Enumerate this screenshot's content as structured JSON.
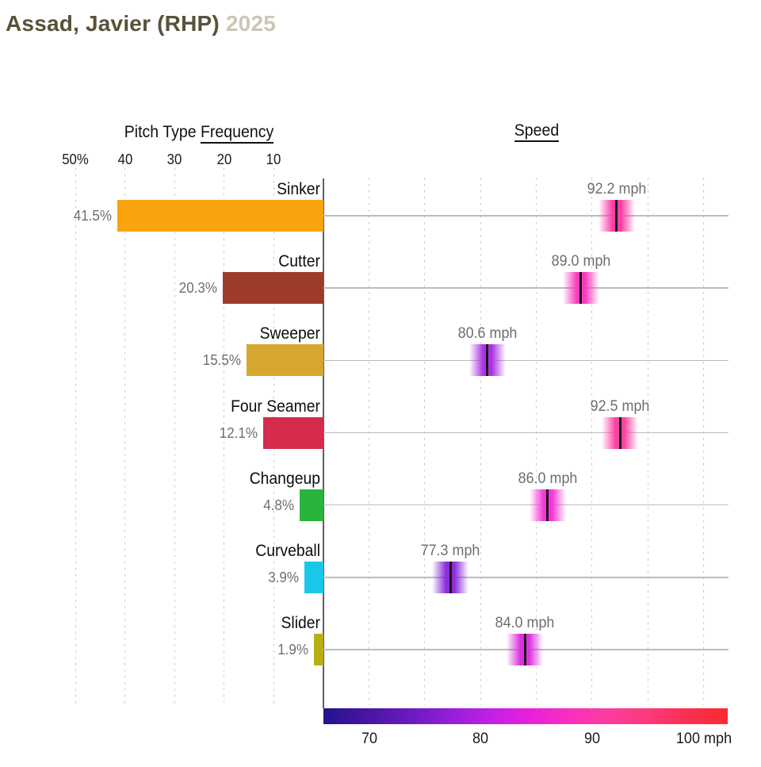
{
  "title": {
    "player": "Assad, Javier (RHP)",
    "year": "2025"
  },
  "sections": {
    "frequency": {
      "title_prefix": "Pitch Type ",
      "title_underlined": "Frequency",
      "axis_ticks": [
        {
          "label": "50%",
          "value": 50
        },
        {
          "label": "40",
          "value": 40
        },
        {
          "label": "30",
          "value": 30
        },
        {
          "label": "20",
          "value": 20
        },
        {
          "label": "10",
          "value": 10
        }
      ]
    },
    "speed": {
      "title": "Speed",
      "axis_ticks": [
        {
          "label": "70",
          "value": 70
        },
        {
          "label": "80",
          "value": 80
        },
        {
          "label": "90",
          "value": 90
        },
        {
          "label": "100 mph",
          "value": 100
        }
      ],
      "minor_tick_values": [
        70,
        75,
        80,
        85,
        90,
        95,
        100
      ]
    }
  },
  "rows": [
    {
      "pitch": "Sinker",
      "freq_label": "41.5%",
      "freq_pct": 41.5,
      "bar_color": "#FBA30D",
      "speed_label": "92.2 mph",
      "speed_mph": 92.2,
      "marker_color": "#FB3FA6"
    },
    {
      "pitch": "Cutter",
      "freq_label": "20.3%",
      "freq_pct": 20.3,
      "bar_color": "#9C3C28",
      "speed_label": "89.0 mph",
      "speed_mph": 89.0,
      "marker_color": "#F93BBE"
    },
    {
      "pitch": "Sweeper",
      "freq_label": "15.5%",
      "freq_pct": 15.5,
      "bar_color": "#D6A72E",
      "speed_label": "80.6 mph",
      "speed_mph": 80.6,
      "marker_color": "#AC33E2"
    },
    {
      "pitch": "Four Seamer",
      "freq_label": "12.1%",
      "freq_pct": 12.1,
      "bar_color": "#D52B4C",
      "speed_label": "92.5 mph",
      "speed_mph": 92.5,
      "marker_color": "#FB42A2"
    },
    {
      "pitch": "Changeup",
      "freq_label": "4.8%",
      "freq_pct": 4.8,
      "bar_color": "#29B43D",
      "speed_label": "86.0 mph",
      "speed_mph": 86.0,
      "marker_color": "#F437D8"
    },
    {
      "pitch": "Curveball",
      "freq_label": "3.9%",
      "freq_pct": 3.9,
      "bar_color": "#19C8E8",
      "speed_label": "77.3 mph",
      "speed_mph": 77.3,
      "marker_color": "#8C2ED9"
    },
    {
      "pitch": "Slider",
      "freq_label": "1.9%",
      "freq_pct": 1.9,
      "bar_color": "#B9AF14",
      "speed_label": "84.0 mph",
      "speed_mph": 84.0,
      "marker_color": "#DC2FDE"
    }
  ],
  "colors": {
    "title_text": "#575239",
    "title_year": "#CBC6B4",
    "value_label_gray": "#6E6E6E",
    "gridline": "#C6C6C6",
    "row_line": "#BCBCBC",
    "axis_line": "#606060",
    "colorbar_left_navy": "#221392",
    "colorbar_mid_magenta": "#EA21D8",
    "colorbar_right_red": "#F92A31"
  },
  "chart_data": {
    "type": "bar",
    "title": "Assad, Javier (RHP) 2025",
    "categories": [
      "Sinker",
      "Cutter",
      "Sweeper",
      "Four Seamer",
      "Changeup",
      "Curveball",
      "Slider"
    ],
    "series": [
      {
        "name": "Pitch Type Frequency",
        "type": "bar",
        "orientation": "horizontal",
        "unit": "%",
        "values": [
          41.5,
          20.3,
          15.5,
          12.1,
          4.8,
          3.9,
          1.9
        ],
        "axis_ticks": [
          50,
          40,
          30,
          20,
          10
        ],
        "axis_range": [
          55,
          0
        ],
        "bar_colors": [
          "#FBA30D",
          "#9C3C28",
          "#D6A72E",
          "#D52B4C",
          "#29B43D",
          "#19C8E8",
          "#B9AF14"
        ]
      },
      {
        "name": "Speed",
        "type": "scatter",
        "unit": "mph",
        "values": [
          92.2,
          89.0,
          80.6,
          92.5,
          86.0,
          77.3,
          84.0
        ],
        "axis_ticks": [
          70,
          80,
          90,
          100
        ],
        "axis_range": [
          66,
          102
        ],
        "colormap": "navy-blue to purple to magenta to pink to red, mapped by mph",
        "legend_position": "bottom horizontal colorbar"
      }
    ],
    "grid": "dashed vertical gridlines; solid gray horizontal line per row"
  }
}
